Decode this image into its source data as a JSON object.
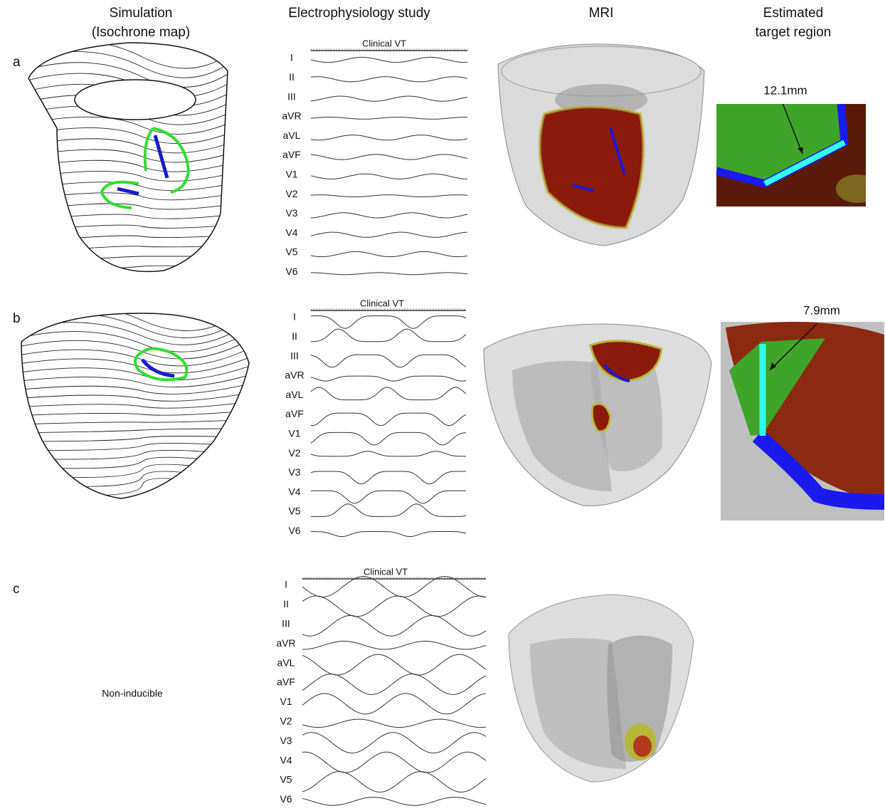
{
  "columns": [
    {
      "lines": [
        "Simulation",
        "(Isochrone map)"
      ]
    },
    {
      "lines": [
        "Electrophysiology study"
      ]
    },
    {
      "lines": [
        "MRI"
      ]
    },
    {
      "lines": [
        "Estimated",
        "target region"
      ]
    }
  ],
  "rows": [
    {
      "label": "a",
      "ecg_title": "Clinical VT",
      "leads": [
        "I",
        "II",
        "III",
        "aVR",
        "aVL",
        "aVF",
        "V1",
        "V2",
        "V3",
        "V4",
        "V5",
        "V6"
      ],
      "measurement": "12.1mm"
    },
    {
      "label": "b",
      "ecg_title": "Clinical VT",
      "leads": [
        "I",
        "II",
        "III",
        "aVR",
        "aVL",
        "aVF",
        "V1",
        "V2",
        "V3",
        "V4",
        "V5",
        "V6"
      ],
      "measurement": "7.9mm"
    },
    {
      "label": "c",
      "ecg_title": "Clinical VT",
      "leads": [
        "I",
        "II",
        "III",
        "aVR",
        "aVL",
        "aVF",
        "V1",
        "V2",
        "V3",
        "V4",
        "V5",
        "V6"
      ],
      "simulation_note": "Non-inducible"
    }
  ]
}
